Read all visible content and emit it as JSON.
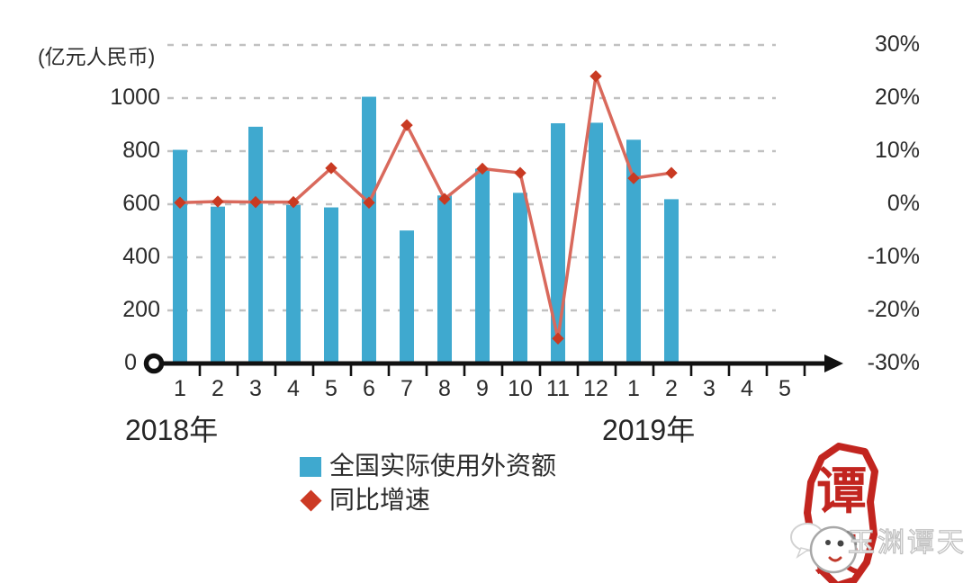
{
  "unit_label": "(亿元人民币)",
  "left_axis": {
    "labels": [
      "1000",
      "800",
      "600",
      "400",
      "200",
      "0"
    ],
    "values": [
      1000,
      800,
      600,
      400,
      200,
      0
    ]
  },
  "right_axis": {
    "labels": [
      "30%",
      "20%",
      "10%",
      "0%",
      "-10%",
      "-20%",
      "-30%"
    ],
    "values": [
      30,
      20,
      10,
      0,
      -10,
      -20,
      -30
    ]
  },
  "x_axis": {
    "month_labels": [
      "1",
      "2",
      "3",
      "4",
      "5",
      "6",
      "7",
      "8",
      "9",
      "10",
      "11",
      "12",
      "1",
      "2",
      "3",
      "4",
      "5"
    ],
    "year_labels": [
      {
        "text": "2018年"
      },
      {
        "text": "2019年"
      }
    ]
  },
  "legend": {
    "items": [
      {
        "label": "全国实际使用外资额",
        "swatch": "square",
        "color": "#3fa9cf"
      },
      {
        "label": "同比增速",
        "swatch": "diamond",
        "color": "#cc3a24"
      }
    ]
  },
  "watermark": {
    "text": "玉渊谭天",
    "seal_char_top": "谭",
    "seal_char_bottom": "天"
  },
  "colors": {
    "bar": "#3fa9cf",
    "line": "#d9695c",
    "marker": "#c93a22",
    "axis": "#111111",
    "gridline": "#c1c1c1",
    "text": "#2b2b2b",
    "seal_red": "#c2251f"
  },
  "chart_data": {
    "type": "bar+line",
    "categories": [
      "2018-01",
      "2018-02",
      "2018-03",
      "2018-04",
      "2018-05",
      "2018-06",
      "2018-07",
      "2018-08",
      "2018-09",
      "2018-10",
      "2018-11",
      "2018-12",
      "2019-01",
      "2019-02"
    ],
    "series": [
      {
        "name": "全国实际使用外资额",
        "type": "bar",
        "unit": "亿元人民币",
        "axis": "left",
        "values": [
          805,
          591,
          892,
          597,
          588,
          1005,
          501,
          633,
          734,
          643,
          905,
          907,
          843,
          619
        ]
      },
      {
        "name": "同比增速",
        "type": "line",
        "unit": "%",
        "axis": "right",
        "values": [
          0.3,
          0.5,
          0.4,
          0.4,
          6.8,
          0.3,
          14.9,
          1.0,
          6.7,
          5.9,
          -25.3,
          24.1,
          4.9,
          5.9
        ]
      }
    ],
    "title": "",
    "xlabel": "",
    "ylabel_left": "(亿元人民币)",
    "left_ylim": [
      0,
      1200
    ],
    "right_ylim_pct": [
      -30,
      30
    ],
    "x_months_shown": {
      "2018": [
        1,
        2,
        3,
        4,
        5,
        6,
        7,
        8,
        9,
        10,
        11,
        12
      ],
      "2019": [
        1,
        2,
        3,
        4,
        5
      ]
    },
    "note_empty_months": "2019 months 3-5 shown on axis without data",
    "gridlines": "horizontal dashed",
    "legend_position": "bottom"
  }
}
